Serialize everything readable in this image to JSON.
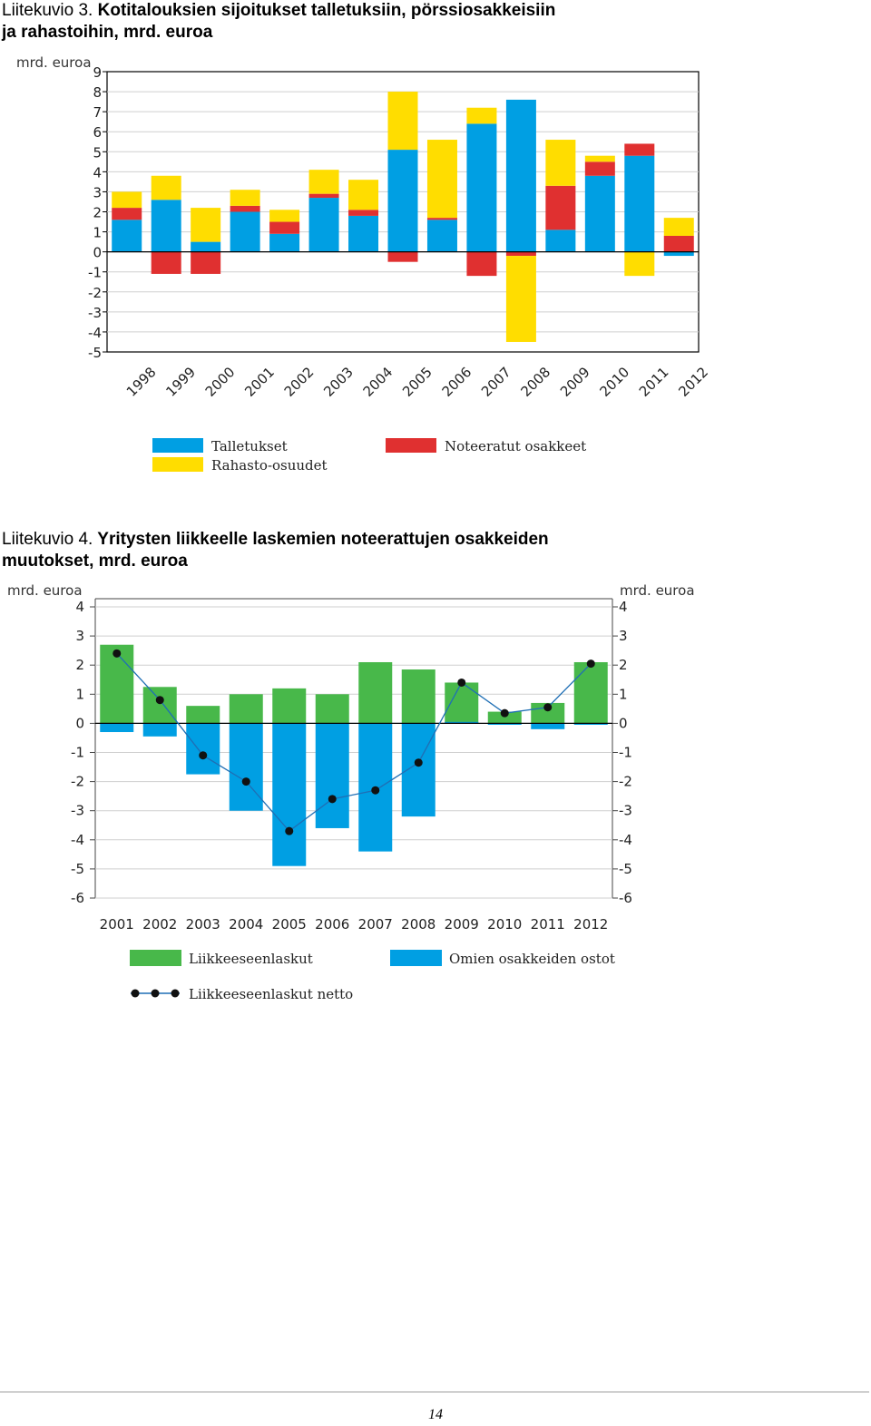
{
  "figure3": {
    "caption_prefix": "Liitekuvio 3.",
    "caption_text": " Kotitalouksien sijoitukset talletuksiin, pörssiosakkeisiin ja rahastoihin, mrd. euroa",
    "caption_line1": "Kotitalouksien sijoitukset talletuksiin, pörssiosakkeisiin",
    "caption_line2": "ja rahastoihin, mrd. euroa"
  },
  "figure4": {
    "caption_prefix": "Liitekuvio 4.",
    "caption_line1": "Yritysten liikkeelle laskemien noteerattujen osakkeiden",
    "caption_line2": "muutokset, mrd. euroa"
  },
  "page_number": "14",
  "chart_data": [
    {
      "type": "bar",
      "stacked": true,
      "title": "",
      "ylabel": "mrd. euroa",
      "ylim": [
        -5,
        9
      ],
      "yticks": [
        9,
        8,
        7,
        6,
        5,
        4,
        3,
        2,
        1,
        0,
        -1,
        -2,
        -3,
        -4,
        -5
      ],
      "grid": true,
      "legend_position": "bottom",
      "categories": [
        "1998",
        "1999",
        "2000",
        "2001",
        "2002",
        "2003",
        "2004",
        "2005",
        "2006",
        "2007",
        "2008",
        "2009",
        "2010",
        "2011",
        "2012"
      ],
      "series": [
        {
          "name": "Talletukset",
          "color": "#009fe3",
          "values": [
            1.6,
            2.6,
            0.5,
            2.0,
            0.9,
            2.7,
            1.8,
            5.1,
            1.6,
            6.4,
            7.6,
            1.1,
            3.8,
            4.8,
            -0.2
          ]
        },
        {
          "name": "Noteeratut osakkeet",
          "color": "#e03030",
          "values": [
            0.6,
            -1.1,
            -1.1,
            0.3,
            0.6,
            0.2,
            0.3,
            -0.5,
            0.1,
            -1.2,
            -0.2,
            2.2,
            0.7,
            0.6,
            0.8
          ]
        },
        {
          "name": "Rahasto-osuudet",
          "color": "#ffdd00",
          "values": [
            0.8,
            1.2,
            1.7,
            0.8,
            0.6,
            1.2,
            1.5,
            2.9,
            3.9,
            0.8,
            -4.3,
            2.3,
            0.3,
            -1.2,
            0.9
          ]
        }
      ]
    },
    {
      "type": "bar",
      "stacked": false,
      "title": "",
      "ylabel": "mrd. euroa",
      "ylabel_right": "mrd. euroa",
      "ylim": [
        -6,
        4
      ],
      "yticks": [
        4,
        3,
        2,
        1,
        0,
        -1,
        -2,
        -3,
        -4,
        -5,
        -6
      ],
      "grid": true,
      "legend_position": "bottom",
      "categories": [
        "2001",
        "2002",
        "2003",
        "2004",
        "2005",
        "2006",
        "2007",
        "2008",
        "2009",
        "2010",
        "2011",
        "2012"
      ],
      "series": [
        {
          "name": "Liikkeeseenlaskut",
          "type": "bar",
          "color": "#48b84a",
          "values": [
            2.7,
            1.25,
            0.6,
            1.0,
            1.2,
            1.0,
            2.1,
            1.85,
            1.4,
            0.4,
            0.7,
            2.1
          ]
        },
        {
          "name": "Omien osakkeiden ostot",
          "type": "bar",
          "color": "#009fe3",
          "values": [
            -0.3,
            -0.45,
            -1.75,
            -3.0,
            -4.9,
            -3.6,
            -4.4,
            -3.2,
            0.05,
            -0.05,
            -0.2,
            -0.05
          ]
        },
        {
          "name": "Liikkeeseenlaskut netto",
          "type": "line",
          "color": "#1f6fb5",
          "values": [
            2.4,
            0.8,
            -1.1,
            -2.0,
            -3.7,
            -2.6,
            -2.3,
            -1.35,
            1.4,
            0.35,
            0.55,
            2.05
          ]
        }
      ]
    }
  ]
}
